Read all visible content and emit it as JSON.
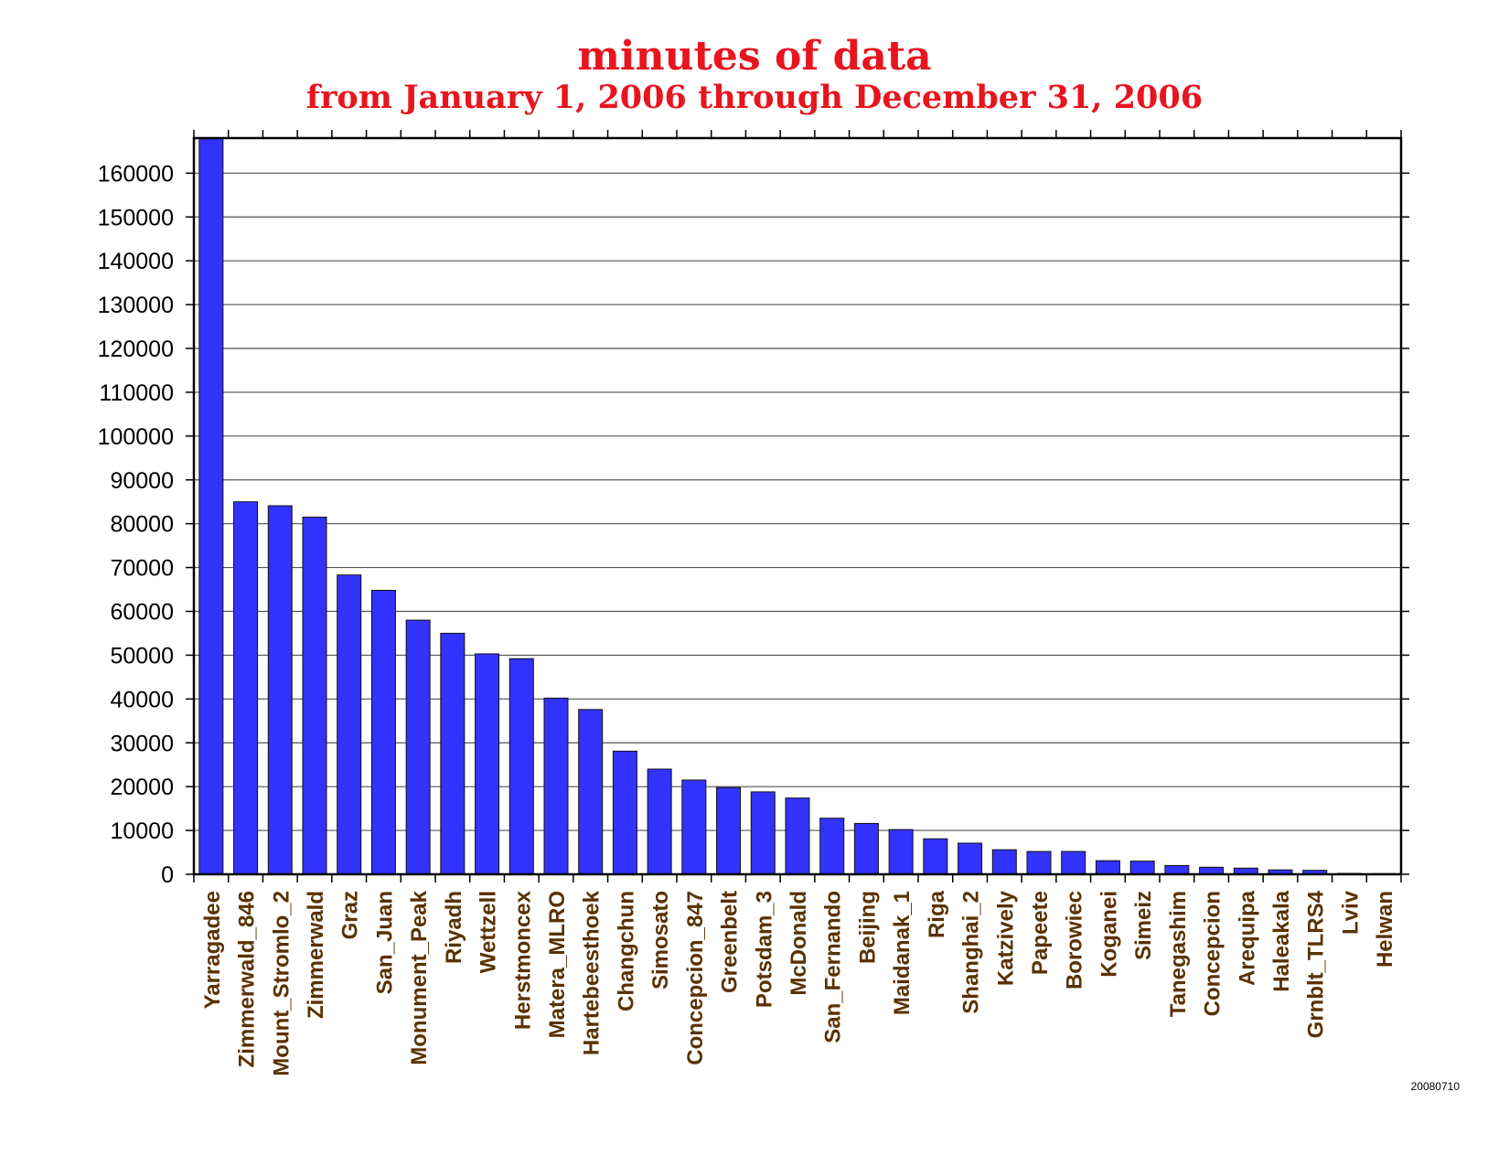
{
  "colors": {
    "title": "#e8141e",
    "bar": "#3333ff",
    "bar_stroke": "#111111",
    "xtick": "#5a3200"
  },
  "stamp": "20080710",
  "chart_data": {
    "type": "bar",
    "title": "minutes of data",
    "subtitle": "from January 1, 2006 through December 31, 2006",
    "xlabel": "",
    "ylabel": "",
    "ylim": [
      0,
      168000
    ],
    "yticks": [
      0,
      10000,
      20000,
      30000,
      40000,
      50000,
      60000,
      70000,
      80000,
      90000,
      100000,
      110000,
      120000,
      130000,
      140000,
      150000,
      160000
    ],
    "grid": true,
    "categories": [
      "Yarragadee",
      "Zimmerwald_846",
      "Mount_Stromlo_2",
      "Zimmerwald",
      "Graz",
      "San_Juan",
      "Monument_Peak",
      "Riyadh",
      "Wettzell",
      "Herstmoncex",
      "Matera_MLRO",
      "Hartebeesthoek",
      "Changchun",
      "Simosato",
      "Concepcion_847",
      "Greenbelt",
      "Potsdam_3",
      "McDonald",
      "San_Fernando",
      "Beijing",
      "Maidanak_1",
      "Riga",
      "Shanghai_2",
      "Katzively",
      "Papeete",
      "Borowiec",
      "Koganei",
      "Simeiz",
      "Tanegashim",
      "Concepcion",
      "Arequipa",
      "Haleakala",
      "Grnblt_TLRS4",
      "Lviv",
      "Helwan"
    ],
    "values": [
      168000,
      85000,
      84100,
      81500,
      68300,
      64800,
      58000,
      55000,
      50300,
      49200,
      40200,
      37600,
      28100,
      24000,
      21500,
      19800,
      18800,
      17400,
      12800,
      11600,
      10200,
      8100,
      7100,
      5600,
      5200,
      5200,
      3100,
      3000,
      2000,
      1600,
      1400,
      1000,
      900,
      200,
      150
    ]
  }
}
